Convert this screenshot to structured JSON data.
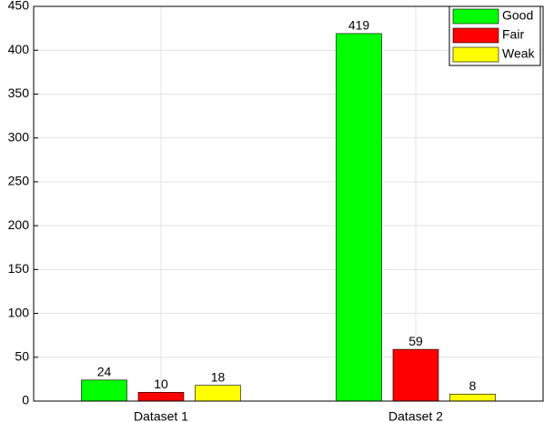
{
  "chart_data": {
    "type": "bar",
    "categories": [
      "Dataset 1",
      "Dataset 2"
    ],
    "series": [
      {
        "name": "Good",
        "color": "#00ff00",
        "values": [
          24,
          419
        ]
      },
      {
        "name": "Fair",
        "color": "#ff0000",
        "values": [
          10,
          59
        ]
      },
      {
        "name": "Weak",
        "color": "#ffff00",
        "values": [
          18,
          8
        ]
      }
    ],
    "ylim": [
      0,
      450
    ],
    "yticks": [
      0,
      50,
      100,
      150,
      200,
      250,
      300,
      350,
      400,
      450
    ],
    "grid": true,
    "legend": "upper right"
  }
}
